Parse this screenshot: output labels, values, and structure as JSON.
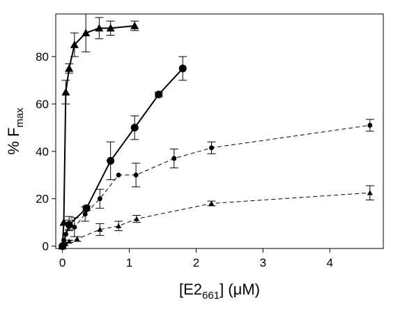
{
  "chart_data": {
    "type": "scatter",
    "title": "",
    "xlabel": {
      "prefix": "[E2",
      "sub": "661",
      "suffix": "] (μM)"
    },
    "ylabel": {
      "prefix": "% F",
      "sub": "max"
    },
    "xlim": [
      -0.1,
      4.8
    ],
    "ylim": [
      -1,
      98
    ],
    "xticks": [
      0,
      1,
      2,
      3,
      4
    ],
    "yticks": [
      0,
      20,
      40,
      60,
      80
    ],
    "grid": false,
    "legend": "none",
    "series": [
      {
        "marker": "triangle",
        "line": "solid",
        "size": "large",
        "x": [
          0,
          0.02,
          0.05,
          0.1,
          0.18,
          0.35,
          0.55,
          0.72,
          1.08
        ],
        "y": [
          0,
          10,
          65,
          75,
          85,
          90,
          92,
          92,
          93
        ],
        "err": [
          0,
          0,
          5,
          2,
          5,
          8,
          4.5,
          3,
          2
        ]
      },
      {
        "marker": "circle",
        "line": "solid",
        "size": "large",
        "x": [
          0,
          0.1,
          0.36,
          0.72,
          1.08,
          1.44,
          1.8
        ],
        "y": [
          0,
          9,
          16,
          36,
          50,
          64,
          75
        ],
        "err": [
          0,
          2,
          1,
          8,
          5,
          1,
          5
        ]
      },
      {
        "marker": "circle",
        "line": "dashed",
        "size": "small",
        "x": [
          0,
          0.02,
          0.05,
          0.1,
          0.18,
          0.34,
          0.56,
          0.84,
          1.1,
          1.67,
          2.23,
          4.6
        ],
        "y": [
          0,
          2.5,
          5,
          9.5,
          8,
          13.5,
          20,
          30,
          30,
          37,
          41.5,
          51
        ],
        "err": [
          0,
          0,
          0,
          3,
          4,
          3,
          4,
          0,
          5,
          4,
          2.5,
          2.5
        ]
      },
      {
        "marker": "triangle",
        "line": "dashed",
        "size": "small",
        "x": [
          0,
          0.02,
          0.05,
          0.1,
          0.22,
          0.56,
          0.84,
          1.11,
          2.23,
          4.6
        ],
        "y": [
          0,
          0.5,
          1,
          2,
          3,
          7,
          8.5,
          11.5,
          18,
          22.5
        ],
        "err": [
          0,
          0,
          0,
          0.5,
          1,
          2.5,
          2,
          1.5,
          1,
          3
        ]
      }
    ]
  }
}
